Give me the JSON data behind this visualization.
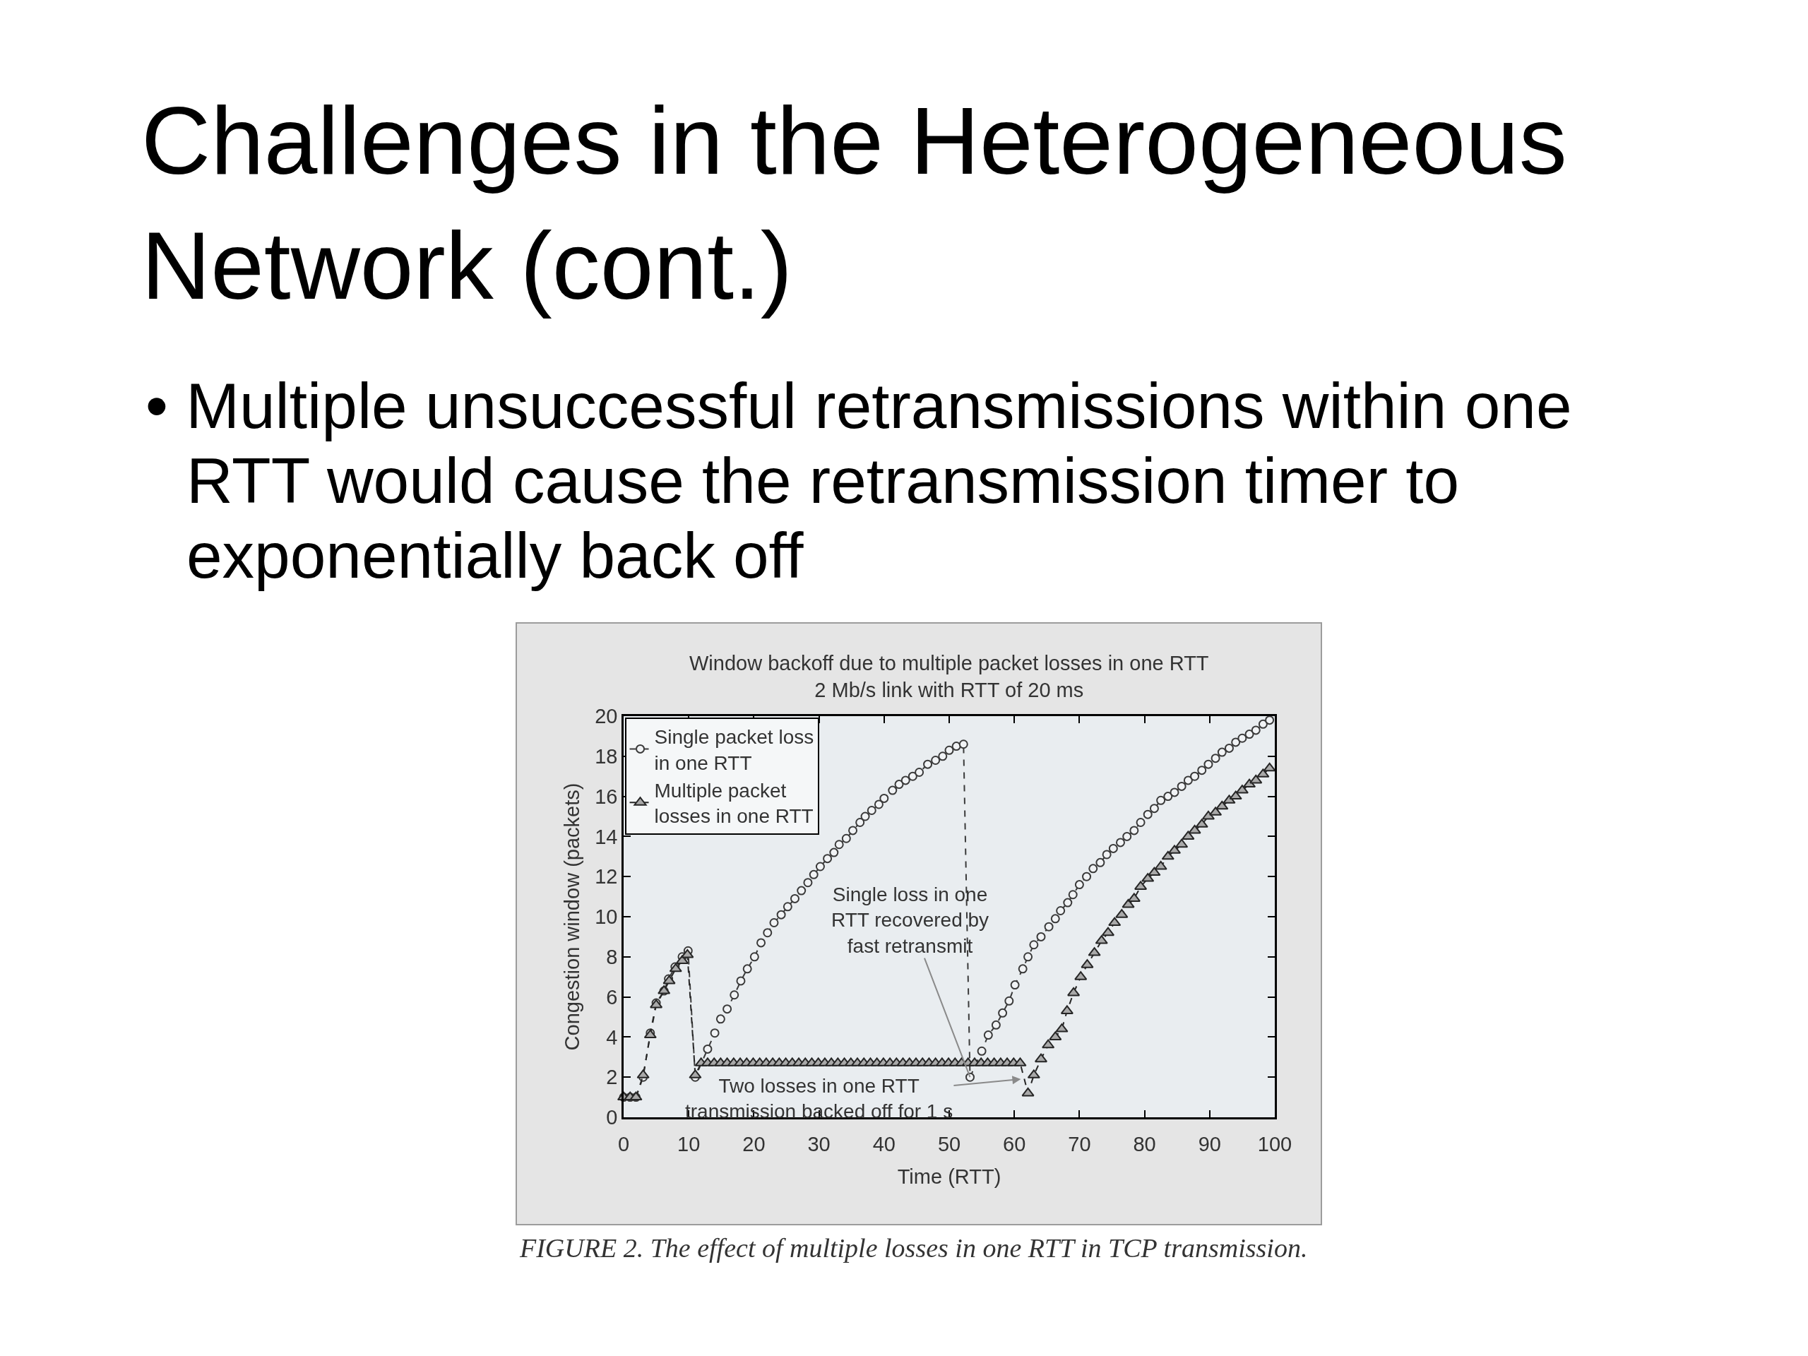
{
  "chart_data": {
    "type": "line",
    "title": "Challenges in the Heterogeneous\nNetwork (cont.)",
    "subtitle": "• Multiple unsuccessful retransmissions within one\nRTT would cause the retransmission timer to\nexponentially back off",
    "xlabel": "Time (RTT)",
    "ylabel": "Congestion window (packets)",
    "annotations": [
      "Window backoff due to multiple packet losses in one RTT\n2 Mb/s link with RTT of 20 ms",
      {
        "text": "Single loss in one\nRTT recovered by\nfast retransmit",
        "x": 53.2,
        "y": 2
      },
      {
        "text": "Two losses in one RTT\ntransmission backed off for 1 s",
        "x": 61,
        "y": 1.9
      },
      "FIGURE 2. The effect of multiple losses in one RTT in TCP transmission."
    ],
    "xlim": [
      0,
      100
    ],
    "ylim": [
      0,
      20
    ],
    "xticks": [
      0,
      10,
      20,
      30,
      40,
      50,
      60,
      70,
      80,
      90,
      100
    ],
    "yticks": [
      0,
      2,
      4,
      6,
      8,
      10,
      12,
      14,
      16,
      18,
      20
    ],
    "grid": false,
    "legend": "top left",
    "series": [
      {
        "name": "Single packet loss\nin one RTT",
        "color": "#3a3a3a",
        "marker": "circle",
        "line_style": "dashed",
        "x": [
          0,
          1,
          1.9,
          3,
          4.1,
          5,
          6.2,
          6.9,
          7.9,
          9,
          9.9,
          11,
          12.9,
          14,
          14.9,
          15.9,
          17,
          18,
          19,
          20.1,
          21.1,
          22.1,
          23.1,
          24.2,
          25.2,
          26.3,
          27.3,
          28.3,
          29.2,
          30.2,
          31.3,
          32.3,
          33.1,
          34.2,
          35.2,
          36.3,
          37.1,
          38.1,
          39.2,
          40,
          41.3,
          42.3,
          43.3,
          44.4,
          45.4,
          46.7,
          47.9,
          49,
          50,
          51.1,
          52.2,
          53.2,
          55,
          56,
          57.2,
          58.2,
          59.2,
          60.1,
          61.3,
          62.1,
          63,
          64.1,
          65.3,
          66.3,
          67.1,
          68.2,
          69,
          70,
          71.1,
          72.1,
          73.2,
          74.2,
          75.2,
          76.3,
          77.3,
          78.4,
          79.4,
          80.5,
          81.5,
          82.5,
          83.6,
          84.6,
          85.7,
          86.7,
          87.7,
          88.8,
          89.8,
          90.9,
          91.9,
          93,
          94,
          95,
          96.1,
          97.1,
          98.2,
          99.2
        ],
        "values": [
          1,
          1,
          1,
          2,
          4.2,
          5.7,
          6.3,
          6.9,
          7.5,
          8,
          8.3,
          2,
          3.4,
          4.2,
          4.9,
          5.4,
          6.1,
          6.8,
          7.4,
          8,
          8.7,
          9.2,
          9.7,
          10.1,
          10.5,
          10.9,
          11.3,
          11.7,
          12.1,
          12.5,
          12.9,
          13.2,
          13.6,
          13.9,
          14.3,
          14.7,
          15,
          15.3,
          15.6,
          15.9,
          16.3,
          16.6,
          16.8,
          17,
          17.2,
          17.6,
          17.8,
          18,
          18.3,
          18.5,
          18.6,
          2,
          3.3,
          4.1,
          4.6,
          5.2,
          5.8,
          6.6,
          7.4,
          8,
          8.6,
          9,
          9.5,
          9.9,
          10.3,
          10.7,
          11.1,
          11.6,
          12,
          12.4,
          12.7,
          13.1,
          13.4,
          13.7,
          14,
          14.3,
          14.7,
          15.1,
          15.4,
          15.8,
          16,
          16.2,
          16.5,
          16.8,
          17,
          17.3,
          17.6,
          17.9,
          18.2,
          18.4,
          18.7,
          18.9,
          19.1,
          19.3,
          19.6,
          19.8
        ]
      },
      {
        "name": "Multiple packet\nlosses in one RTT",
        "color": "#262626",
        "marker": "triangle",
        "line_style": "dashed",
        "x": [
          0,
          1,
          1.9,
          3,
          4.1,
          5,
          6.2,
          7,
          8,
          9,
          9.8,
          11,
          11.9,
          12.9,
          13.9,
          14.9,
          15.9,
          16.9,
          17.9,
          18.9,
          19.9,
          20.9,
          21.9,
          22.9,
          23.9,
          24.9,
          25.9,
          26.9,
          27.9,
          28.9,
          29.9,
          30.9,
          31.9,
          32.9,
          33.9,
          34.9,
          35.9,
          36.9,
          37.9,
          38.9,
          39.9,
          40.9,
          41.9,
          42.9,
          43.9,
          44.9,
          45.9,
          46.9,
          47.9,
          48.9,
          49.9,
          50.9,
          51.9,
          52.9,
          53.9,
          54.9,
          55.9,
          56.9,
          57.9,
          58.9,
          59.9,
          60.9,
          62.1,
          63,
          64.1,
          65.2,
          66.3,
          67.3,
          68.1,
          69.1,
          70.2,
          71.2,
          72.3,
          73.4,
          74.4,
          75.4,
          76.5,
          77.5,
          78.4,
          79.4,
          80.5,
          81.5,
          82.5,
          83.6,
          84.6,
          85.7,
          86.7,
          87.7,
          88.8,
          89.8,
          90.9,
          91.9,
          93,
          94,
          95,
          96.1,
          97.1,
          98.2,
          99.2
        ],
        "values": [
          1,
          1,
          1,
          2.1,
          4.1,
          5.6,
          6.3,
          6.8,
          7.4,
          7.8,
          8.1,
          2.1,
          2.7,
          2.7,
          2.7,
          2.7,
          2.7,
          2.7,
          2.7,
          2.7,
          2.7,
          2.7,
          2.7,
          2.7,
          2.7,
          2.7,
          2.7,
          2.7,
          2.7,
          2.7,
          2.7,
          2.7,
          2.7,
          2.7,
          2.7,
          2.7,
          2.7,
          2.7,
          2.7,
          2.7,
          2.7,
          2.7,
          2.7,
          2.7,
          2.7,
          2.7,
          2.7,
          2.7,
          2.7,
          2.7,
          2.7,
          2.7,
          2.7,
          2.7,
          2.7,
          2.7,
          2.7,
          2.7,
          2.7,
          2.7,
          2.7,
          2.7,
          1.2,
          2.1,
          2.9,
          3.6,
          4,
          4.4,
          5.3,
          6.2,
          7,
          7.6,
          8.2,
          8.8,
          9.2,
          9.7,
          10.1,
          10.6,
          10.9,
          11.5,
          11.9,
          12.2,
          12.5,
          13,
          13.3,
          13.6,
          14,
          14.3,
          14.6,
          15,
          15.2,
          15.5,
          15.8,
          16,
          16.3,
          16.6,
          16.8,
          17.1,
          17.4
        ]
      }
    ]
  }
}
